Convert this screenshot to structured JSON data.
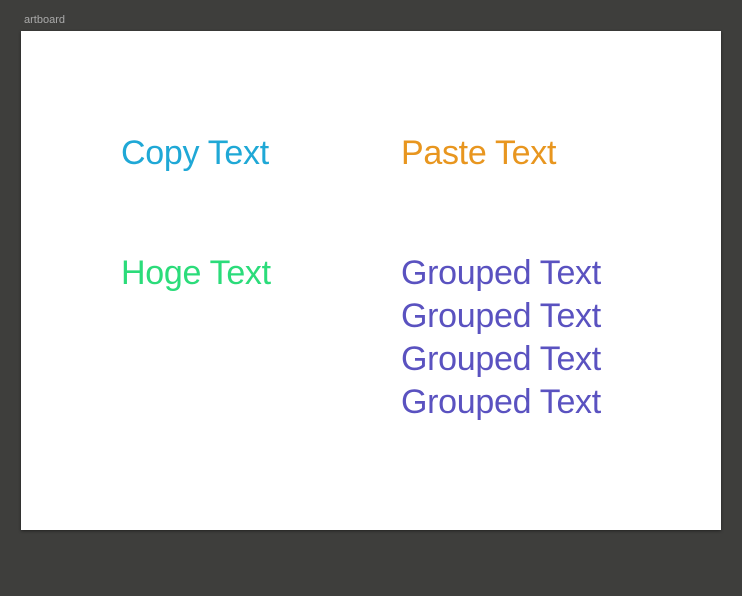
{
  "artboard": {
    "label": "artboard",
    "background": "#ffffff"
  },
  "canvas": {
    "background": "#3e3e3c"
  },
  "texts": {
    "copy": {
      "text": "Copy Text",
      "color": "#1fa8d6"
    },
    "paste": {
      "text": "Paste Text",
      "color": "#e8961f"
    },
    "hoge": {
      "text": "Hoge Text",
      "color": "#2bdc7a"
    },
    "grouped": {
      "color": "#5a52c0",
      "items": [
        "Grouped Text",
        "Grouped Text",
        "Grouped Text",
        "Grouped Text"
      ]
    }
  }
}
